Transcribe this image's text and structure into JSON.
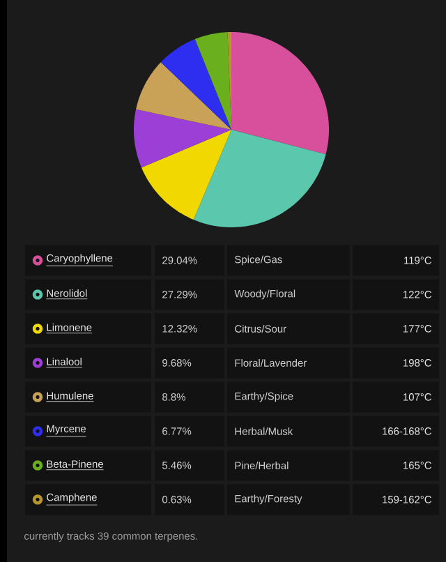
{
  "chart_data": {
    "type": "pie",
    "categories": [
      "Caryophyllene",
      "Nerolidol",
      "Limonene",
      "Linalool",
      "Humulene",
      "Myrcene",
      "Beta-Pinene",
      "Camphene"
    ],
    "values": [
      29.04,
      27.29,
      12.32,
      9.68,
      8.8,
      6.77,
      5.46,
      0.63
    ],
    "value_labels": [
      "29.04%",
      "27.29%",
      "12.32%",
      "9.68%",
      "8.8%",
      "6.77%",
      "5.46%",
      "0.63%"
    ],
    "colors": [
      "#d84f9c",
      "#5bc8ad",
      "#f0d800",
      "#9c3fd6",
      "#c9a258",
      "#2e2ef0",
      "#6ab01e",
      "#b8962e"
    ],
    "legend": "bottom",
    "annotations": [
      "Spice/Gas",
      "119°C",
      "Woody/Floral",
      "122°C",
      "Citrus/Sour",
      "177°C",
      "Floral/Lavender",
      "198°C",
      "Earthy/Spice",
      "107°C",
      "Herbal/Musk",
      "166-168°C",
      "Pine/Herbal",
      "165°C",
      "Earthy/Foresty",
      "159-162°C",
      "currently tracks 39 common terpenes."
    ]
  }
}
